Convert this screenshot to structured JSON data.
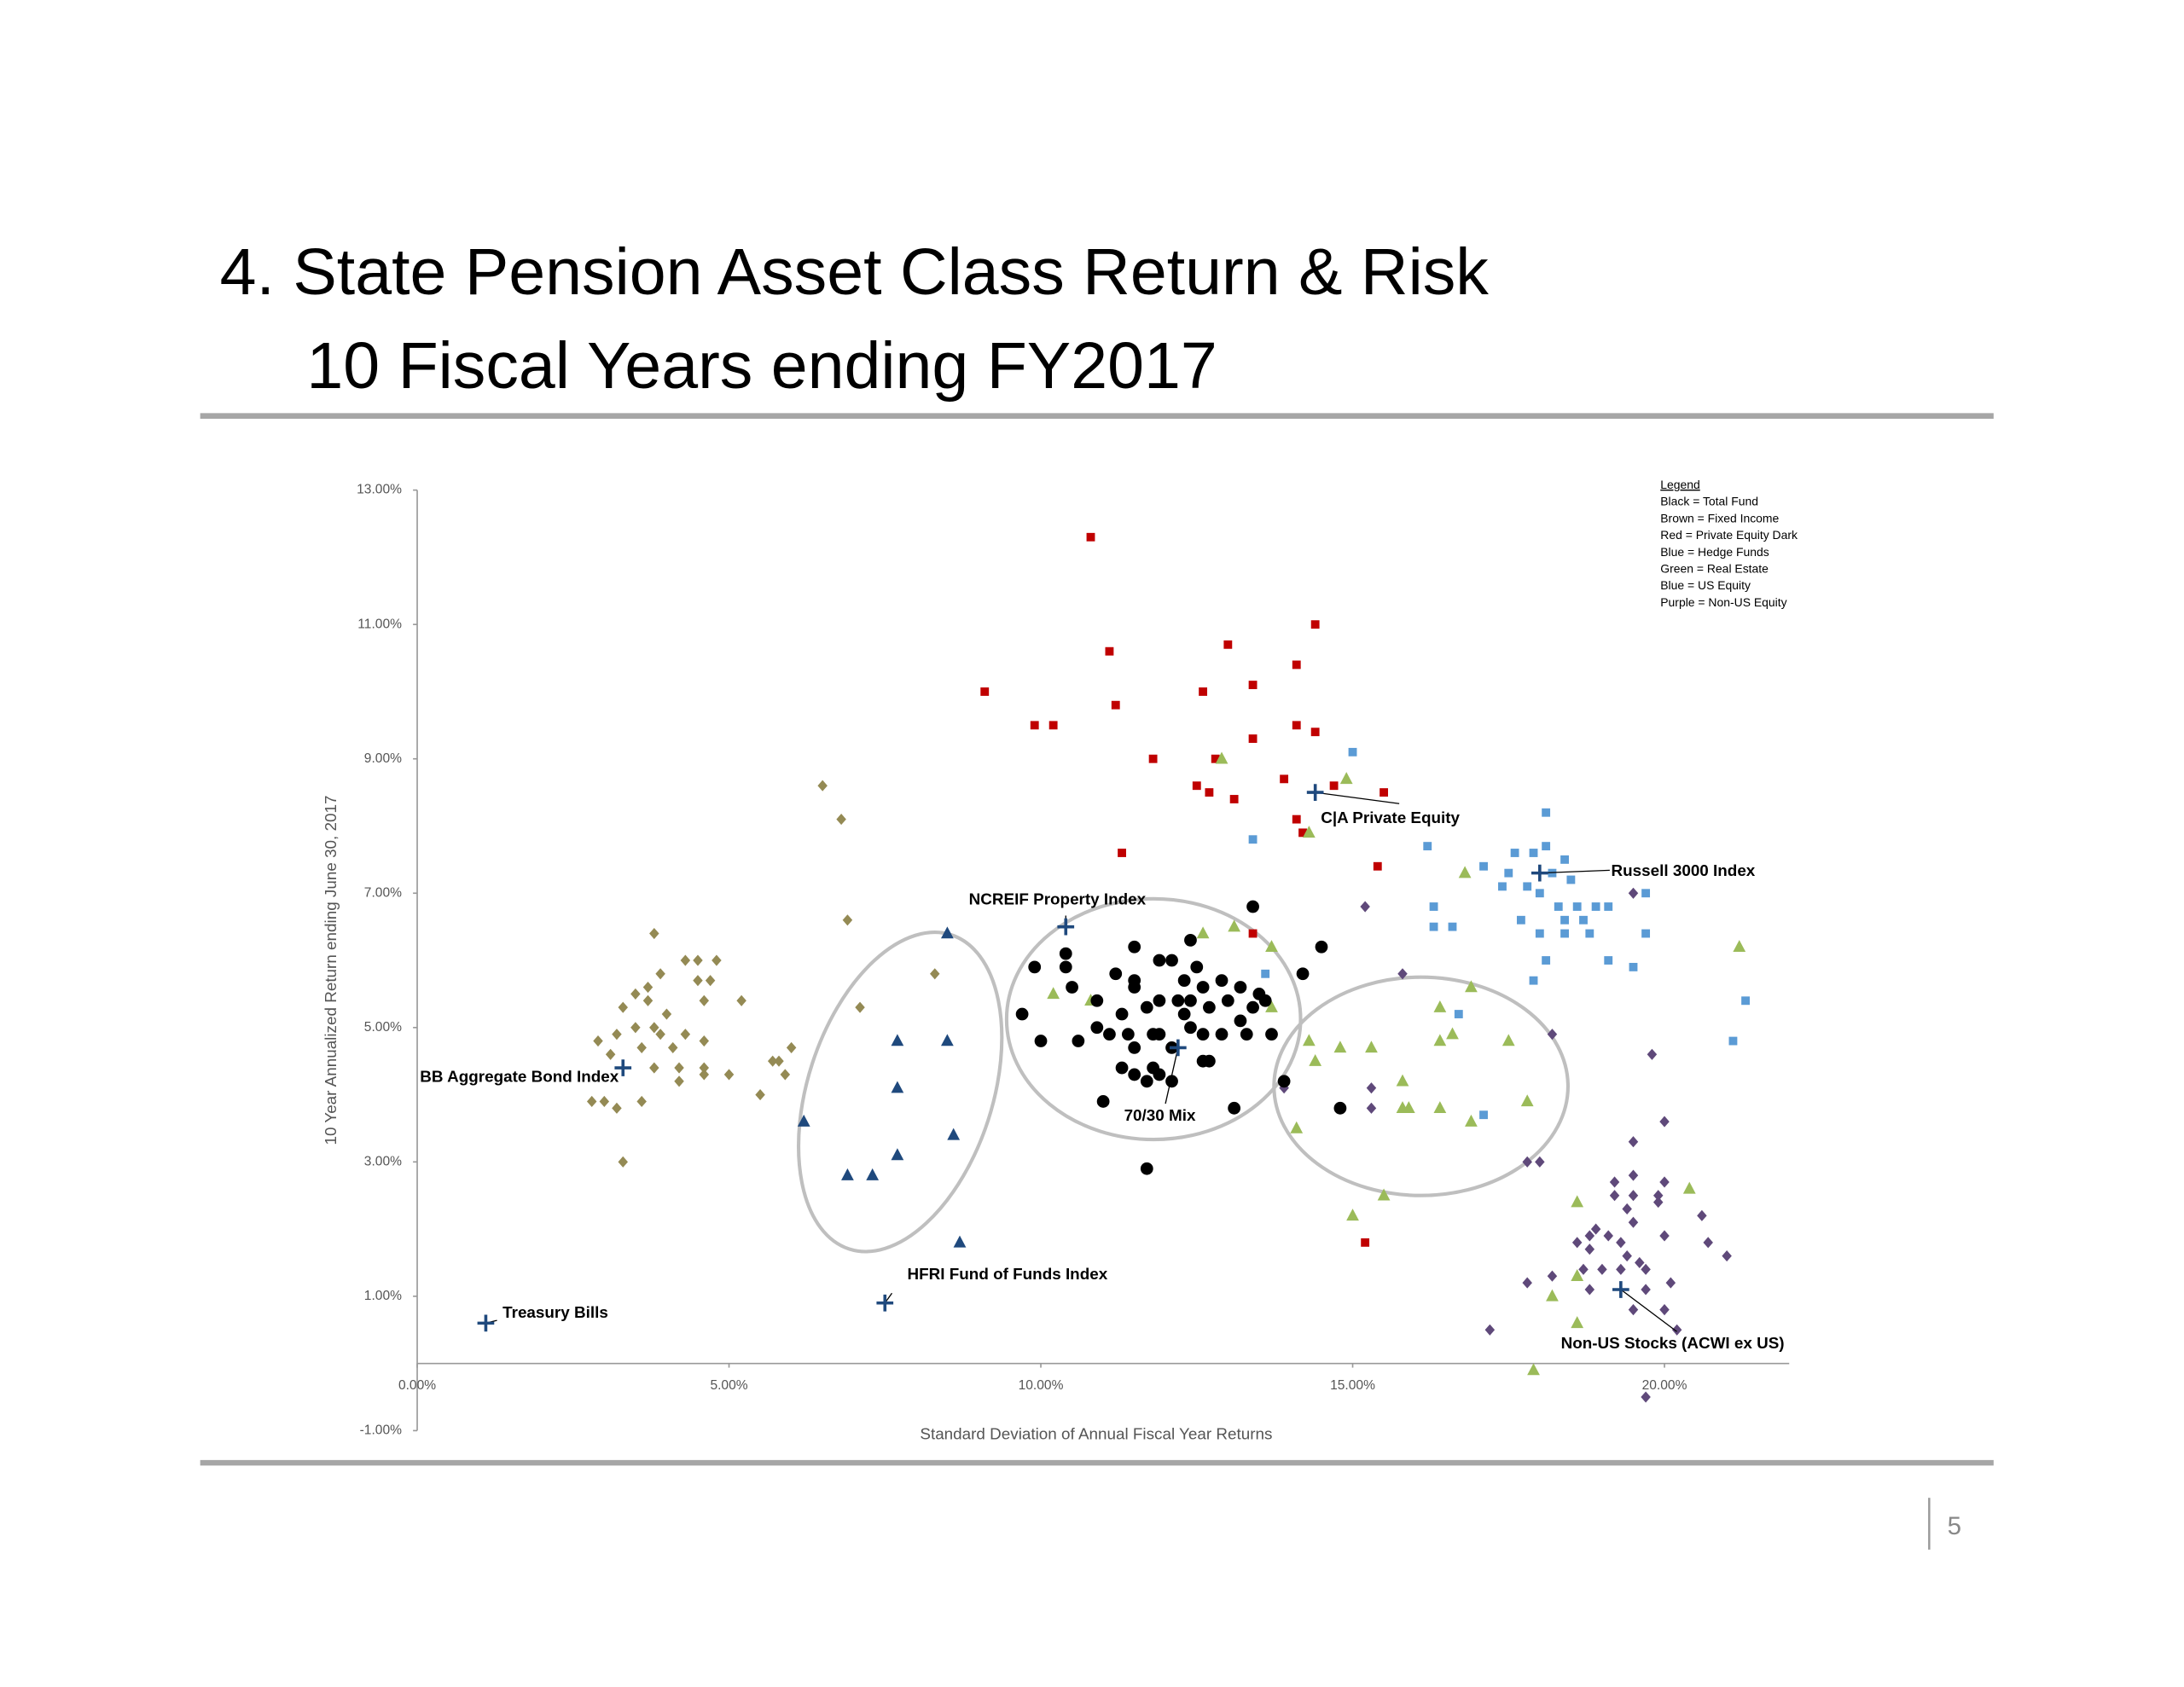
{
  "slide": {
    "title_lines": [
      "4. State Pension Asset Class Return & Risk",
      "10 Fiscal Years ending FY2017"
    ],
    "page_number": 5
  },
  "chart_data": {
    "type": "scatter",
    "x_label": "Standard Deviation of Annual Fiscal Year Returns",
    "y_label": "10 Year Annualized Return ending June 30, 2017",
    "xlim": [
      0,
      22
    ],
    "ylim": [
      -1,
      13
    ],
    "xticks": [
      {
        "value": 0,
        "label": "0.00%"
      },
      {
        "value": 5,
        "label": "5.00%"
      },
      {
        "value": 10,
        "label": "10.00%"
      },
      {
        "value": 15,
        "label": "15.00%"
      },
      {
        "value": 20,
        "label": "20.00%"
      }
    ],
    "yticks": [
      {
        "value": -1,
        "label": "-1.00%"
      },
      {
        "value": 1,
        "label": "1.00%"
      },
      {
        "value": 3,
        "label": "3.00%"
      },
      {
        "value": 5,
        "label": "5.00%"
      },
      {
        "value": 7,
        "label": "7.00%"
      },
      {
        "value": 9,
        "label": "9.00%"
      },
      {
        "value": 11,
        "label": "11.00%"
      },
      {
        "value": 13,
        "label": "13.00%"
      }
    ],
    "legend_title": "Legend",
    "legend_lines": [
      "Black = Total Fund",
      "Brown = Fixed Income",
      "Red = Private Equity  Dark",
      "Blue = Hedge Funds",
      "Green = Real Estate",
      "Blue = US Equity",
      "Purple = Non-US Equity"
    ],
    "series": [
      {
        "marker": "diamond",
        "color": "#948a54",
        "x": [
          6.5,
          6.8,
          6.9,
          3.8,
          7.1,
          8.3,
          4.3,
          4.5,
          4.8,
          4.5,
          4.7,
          3.9,
          3.7,
          3.5,
          3.7,
          3.3,
          4.0,
          4.6,
          5.2,
          3.5,
          3.8,
          3.2,
          3.9,
          4.3,
          4.6,
          4.1,
          3.6,
          6.0,
          2.9,
          3.1,
          5.7,
          5.8,
          3.8,
          4.2,
          4.6,
          4.6,
          5.0,
          5.9,
          4.2,
          5.5,
          2.8,
          3.0,
          3.6,
          3.2,
          3.3
        ],
        "y": [
          8.6,
          8.1,
          6.6,
          6.4,
          5.3,
          5.8,
          6.0,
          6.0,
          6.0,
          5.7,
          5.7,
          5.8,
          5.6,
          5.5,
          5.4,
          5.3,
          5.2,
          5.4,
          5.4,
          5.0,
          5.0,
          4.9,
          4.9,
          4.9,
          4.8,
          4.7,
          4.7,
          4.7,
          4.8,
          4.6,
          4.5,
          4.5,
          4.4,
          4.4,
          4.4,
          4.3,
          4.3,
          4.3,
          4.2,
          4.0,
          3.9,
          3.9,
          3.9,
          3.8,
          3.0
        ]
      },
      {
        "marker": "triangle",
        "color": "#1f497d",
        "x": [
          8.5,
          7.7,
          8.5,
          7.7,
          6.2,
          8.6,
          7.7,
          6.9,
          7.3,
          8.7
        ],
        "y": [
          6.4,
          4.8,
          4.8,
          4.1,
          3.6,
          3.4,
          3.1,
          2.8,
          2.8,
          1.8
        ]
      },
      {
        "marker": "square",
        "color": "#c00000",
        "x": [
          10.8,
          9.1,
          9.9,
          10.2,
          11.1,
          11.2,
          13.0,
          14.4,
          12.6,
          13.4,
          14.1,
          14.1,
          14.4,
          13.4,
          11.8,
          12.8,
          12.5,
          12.7,
          13.1,
          13.9,
          14.7,
          15.5,
          14.1,
          14.2,
          11.3,
          15.4,
          13.4,
          15.2
        ],
        "y": [
          12.3,
          10.0,
          9.5,
          9.5,
          10.6,
          9.8,
          10.7,
          11.0,
          10.0,
          10.1,
          10.4,
          9.5,
          9.4,
          9.3,
          9.0,
          9.0,
          8.6,
          8.5,
          8.4,
          8.7,
          8.6,
          8.5,
          8.1,
          7.9,
          7.6,
          7.4,
          6.4,
          1.8
        ]
      },
      {
        "marker": "square",
        "color": "#5b9bd5",
        "x": [
          15.0,
          13.4,
          16.2,
          18.1,
          17.1,
          17.6,
          17.9,
          18.1,
          18.4,
          17.5,
          17.8,
          17.4,
          18.2,
          18.5,
          18.0,
          18.3,
          18.6,
          18.9,
          19.1,
          18.4,
          18.7,
          17.7,
          18.0,
          18.4,
          18.8,
          19.7,
          19.7,
          16.3,
          16.3,
          16.6,
          18.1,
          19.1,
          19.5,
          17.9,
          21.3,
          21.1,
          13.6,
          16.7,
          17.1
        ],
        "y": [
          9.1,
          7.8,
          7.7,
          8.2,
          7.4,
          7.6,
          7.6,
          7.7,
          7.5,
          7.3,
          7.1,
          7.1,
          7.3,
          7.2,
          7.0,
          6.8,
          6.8,
          6.8,
          6.8,
          6.6,
          6.6,
          6.6,
          6.4,
          6.4,
          6.4,
          7.0,
          6.4,
          6.8,
          6.5,
          6.5,
          6.0,
          6.0,
          5.9,
          5.7,
          5.4,
          4.8,
          5.8,
          5.2,
          3.7
        ]
      },
      {
        "marker": "triangle",
        "color": "#9bbb59",
        "x": [
          14.9,
          12.9,
          14.3,
          12.6,
          13.1,
          13.7,
          16.8,
          21.2,
          10.2,
          10.8,
          13.7,
          14.3,
          14.8,
          15.3,
          16.4,
          16.9,
          16.6,
          16.4,
          17.5,
          14.4,
          15.8,
          14.1,
          15.8,
          15.9,
          16.4,
          16.9,
          17.8,
          15.5,
          15.0,
          18.6,
          20.4,
          18.6,
          18.2,
          18.6,
          17.9
        ],
        "y": [
          8.7,
          9.0,
          7.9,
          6.4,
          6.5,
          6.2,
          7.3,
          6.2,
          5.5,
          5.4,
          5.3,
          4.8,
          4.7,
          4.7,
          5.3,
          5.6,
          4.9,
          4.8,
          4.8,
          4.5,
          4.2,
          3.5,
          3.8,
          3.8,
          3.8,
          3.6,
          3.9,
          2.5,
          2.2,
          2.4,
          2.6,
          1.3,
          1.0,
          0.6,
          -0.1
        ]
      },
      {
        "marker": "diamond",
        "color": "#5f497a",
        "x": [
          15.2,
          15.8,
          19.5,
          18.2,
          19.8,
          15.3,
          15.3,
          13.9,
          20.0,
          17.8,
          18.0,
          19.5,
          19.2,
          19.5,
          20.0,
          19.2,
          19.5,
          19.9,
          19.4,
          20.6,
          19.9,
          18.9,
          18.8,
          19.1,
          19.5,
          20.0,
          20.7,
          21.0,
          18.6,
          18.8,
          19.3,
          19.4,
          19.6,
          18.7,
          19.0,
          19.3,
          18.2,
          19.7,
          20.1,
          17.8,
          18.8,
          19.7,
          20.0,
          19.5,
          20.2,
          17.2,
          19.7
        ],
        "y": [
          6.8,
          5.8,
          7.0,
          4.9,
          4.6,
          4.1,
          3.8,
          4.1,
          3.6,
          3.0,
          3.0,
          3.3,
          2.7,
          2.8,
          2.7,
          2.5,
          2.5,
          2.5,
          2.3,
          2.2,
          2.4,
          2.0,
          1.9,
          1.9,
          2.1,
          1.9,
          1.8,
          1.6,
          1.8,
          1.7,
          1.8,
          1.6,
          1.5,
          1.4,
          1.4,
          1.4,
          1.3,
          1.4,
          1.2,
          1.2,
          1.1,
          1.1,
          0.8,
          0.8,
          0.5,
          0.5,
          -0.5
        ]
      },
      {
        "marker": "circle",
        "color": "#000000",
        "x": [
          13.4,
          14.5,
          10.4,
          11.5,
          12.4,
          9.9,
          10.4,
          11.2,
          11.9,
          12.1,
          12.5,
          14.2,
          10.5,
          11.5,
          12.3,
          12.6,
          12.9,
          13.2,
          13.5,
          13.6,
          10.9,
          11.5,
          11.9,
          12.2,
          12.4,
          11.7,
          13.0,
          12.7,
          9.7,
          11.3,
          12.3,
          13.2,
          13.4,
          11.1,
          11.4,
          11.8,
          11.9,
          12.4,
          12.6,
          12.9,
          13.3,
          13.7,
          10.0,
          10.6,
          10.9,
          11.5,
          12.1,
          12.6,
          12.7,
          11.3,
          11.8,
          11.9,
          11.5,
          11.7,
          12.1,
          13.9,
          11.0,
          14.8,
          13.1,
          11.7
        ],
        "y": [
          6.8,
          6.2,
          6.1,
          6.2,
          6.3,
          5.9,
          5.9,
          5.8,
          6.0,
          6.0,
          5.9,
          5.8,
          5.6,
          5.7,
          5.7,
          5.6,
          5.7,
          5.6,
          5.5,
          5.4,
          5.4,
          5.6,
          5.4,
          5.4,
          5.4,
          5.3,
          5.4,
          5.3,
          5.2,
          5.2,
          5.2,
          5.1,
          5.3,
          4.9,
          4.9,
          4.9,
          4.9,
          5.0,
          4.9,
          4.9,
          4.9,
          4.9,
          4.8,
          4.8,
          5.0,
          4.7,
          4.7,
          4.5,
          4.5,
          4.4,
          4.4,
          4.3,
          4.3,
          4.2,
          4.2,
          4.2,
          3.9,
          3.8,
          3.8,
          2.9
        ]
      },
      {
        "marker": "plus",
        "color": "#1f497d",
        "x": [
          1.1,
          3.3,
          7.5,
          10.4,
          12.2,
          14.4,
          18.0,
          19.3
        ],
        "y": [
          0.6,
          4.4,
          0.9,
          6.5,
          4.7,
          8.5,
          7.3,
          1.1
        ],
        "labels": [
          "Treasury Bills",
          "BB Aggregate Bond Index",
          "HFRI Fund of Funds Index",
          "NCREIF Property Index",
          "70/30 Mix",
          "C|A Private Equity",
          "Russell 3000 Index",
          "Non-US Stocks (ACWI ex US)"
        ]
      }
    ]
  }
}
